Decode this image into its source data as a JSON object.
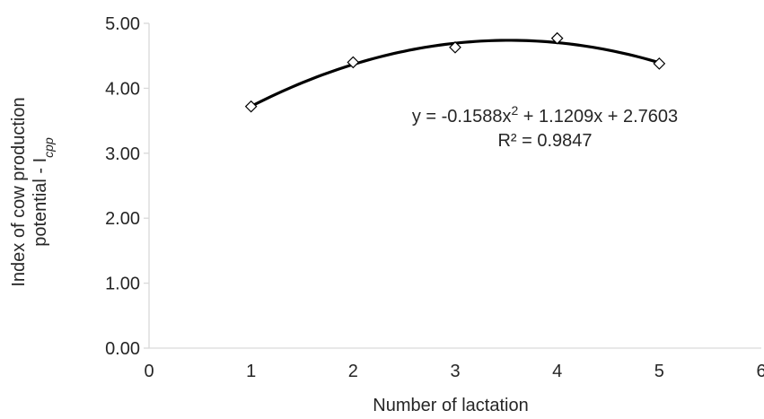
{
  "chart_data": {
    "type": "scatter",
    "title": "",
    "xlabel": "Number of lactation",
    "ylabel": {
      "line1": "Index of cow production",
      "line2_prefix": "potential - I",
      "line2_subscript": "cpp"
    },
    "xlim": [
      0,
      6
    ],
    "ylim": [
      0,
      5
    ],
    "x_ticks": [
      "0",
      "1",
      "2",
      "3",
      "4",
      "5",
      "6"
    ],
    "y_ticks": [
      "0.00",
      "1.00",
      "2.00",
      "3.00",
      "4.00",
      "5.00"
    ],
    "grid": false,
    "series": [
      {
        "marker": "diamond-open",
        "x": [
          1,
          2,
          3,
          4,
          5
        ],
        "y": [
          3.72,
          4.4,
          4.63,
          4.77,
          4.38
        ]
      }
    ],
    "trendline": {
      "type": "polynomial",
      "order": 2,
      "coefficients": {
        "a": -0.1588,
        "b": 1.1209,
        "c": 2.7603
      },
      "x_range": [
        1,
        5
      ],
      "equation": {
        "part1": "y = -0.1588x",
        "sup": "2",
        "part2": " + 1.1209x + 2.7603"
      },
      "r_squared": "R² = 0.9847"
    },
    "colors": {
      "axis": "#d9d9d9",
      "series": "#000000",
      "text": "#262626"
    }
  }
}
